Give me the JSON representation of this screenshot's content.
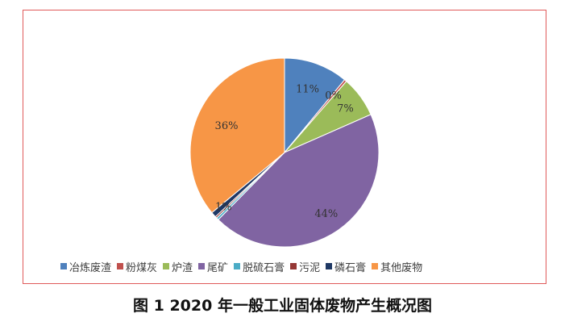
{
  "caption": "图 1   2020 年一般工业固体废物产生概况图",
  "chart_data": {
    "type": "pie",
    "title": "",
    "slices": [
      {
        "name": "冶炼废渣",
        "value": 11,
        "label": "11%",
        "color": "#4f81bd"
      },
      {
        "name": "粉煤灰",
        "value": 0.4,
        "label": "0%",
        "color": "#c0504d"
      },
      {
        "name": "炉渣",
        "value": 7,
        "label": "7%",
        "color": "#9bbb59"
      },
      {
        "name": "尾矿",
        "value": 44,
        "label": "44%",
        "color": "#8064a2"
      },
      {
        "name": "脱硫石膏",
        "value": 0.4,
        "label": "",
        "color": "#4bacc6"
      },
      {
        "name": "污泥",
        "value": 0.3,
        "label": "",
        "color": "#953735"
      },
      {
        "name": "磷石膏",
        "value": 0.9,
        "label": "1%",
        "color": "#1f3864"
      },
      {
        "name": "其他废物",
        "value": 36,
        "label": "36%",
        "color": "#f79646"
      }
    ],
    "start_angle": "top, clockwise",
    "legend_position": "bottom"
  }
}
